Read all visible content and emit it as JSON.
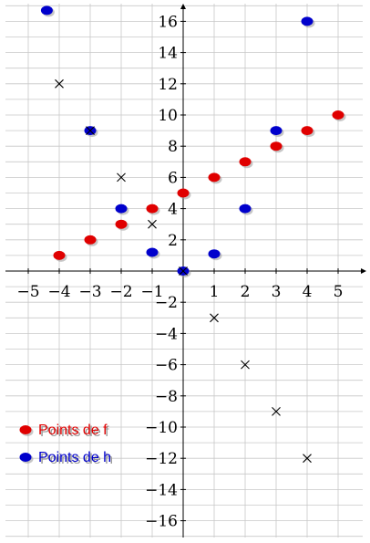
{
  "chart_data": {
    "type": "scatter",
    "xlim": [
      -5.5,
      5.7
    ],
    "ylim": [
      -17,
      17.2
    ],
    "x_ticks": [
      -5,
      -4,
      -3,
      -2,
      -1,
      1,
      2,
      3,
      4,
      5
    ],
    "y_ticks": [
      -16,
      -14,
      -12,
      -10,
      -8,
      -6,
      -4,
      -2,
      2,
      4,
      6,
      8,
      10,
      12,
      14,
      16
    ],
    "grid": true,
    "legend_position": "bottom-left",
    "series": [
      {
        "name": "Points de f",
        "color": "#e00000",
        "marker": "filled-ellipse",
        "points": [
          [
            -4,
            1
          ],
          [
            -3,
            2
          ],
          [
            -2,
            3
          ],
          [
            -1,
            4
          ],
          [
            0,
            5
          ],
          [
            1,
            6
          ],
          [
            2,
            7
          ],
          [
            3,
            8
          ],
          [
            4,
            9
          ],
          [
            5,
            10
          ]
        ]
      },
      {
        "name": "Points de h",
        "color": "#0000cc",
        "marker": "filled-ellipse",
        "points": [
          [
            -4.4,
            16.7
          ],
          [
            -3,
            9
          ],
          [
            -2,
            4
          ],
          [
            -1,
            1.2
          ],
          [
            0,
            0
          ],
          [
            1,
            1.1
          ],
          [
            2,
            4
          ],
          [
            3,
            9
          ],
          [
            4,
            16
          ]
        ]
      },
      {
        "name": "",
        "color": "#000000",
        "marker": "cross",
        "points": [
          [
            -4,
            12
          ],
          [
            -3,
            9
          ],
          [
            -2,
            6
          ],
          [
            -1,
            3
          ],
          [
            0,
            0
          ],
          [
            1,
            -3
          ],
          [
            2,
            -6
          ],
          [
            3,
            -9
          ],
          [
            4,
            -12
          ]
        ]
      }
    ]
  }
}
